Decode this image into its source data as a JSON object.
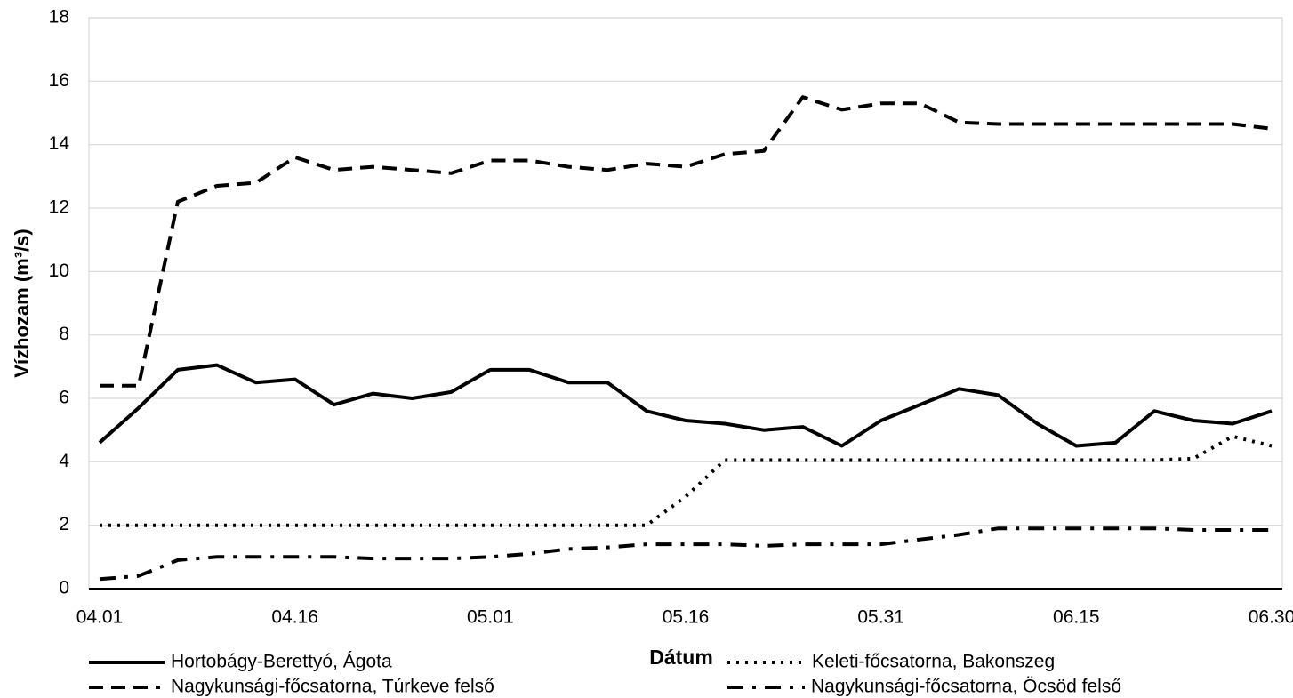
{
  "chart_data": {
    "type": "line",
    "x_label": "Dátum",
    "y_label": "Vízhozam (m³/s)",
    "categories": [
      "04.01",
      null,
      null,
      null,
      null,
      "04.16",
      null,
      null,
      null,
      null,
      "05.01",
      null,
      null,
      null,
      null,
      "05.16",
      null,
      null,
      null,
      null,
      "05.31",
      null,
      null,
      null,
      null,
      "06.15",
      null,
      null,
      null,
      null,
      "06.30"
    ],
    "ylim": [
      0,
      18
    ],
    "yticks": [
      0,
      2,
      4,
      6,
      8,
      10,
      12,
      14,
      16,
      18
    ],
    "grid": true,
    "series": [
      {
        "name": "Hortobágy-Berettyó, Ágota",
        "color": "#000000",
        "dash": "solid",
        "values": [
          4.6,
          5.7,
          6.9,
          7.05,
          6.5,
          6.6,
          5.8,
          6.15,
          6.0,
          6.2,
          6.9,
          6.9,
          6.5,
          6.5,
          5.6,
          5.3,
          5.2,
          5.0,
          5.1,
          4.5,
          5.3,
          5.8,
          6.3,
          6.1,
          5.2,
          4.5,
          4.6,
          5.6,
          5.3,
          5.2,
          5.6
        ]
      },
      {
        "name": "Keleti-főcsatorna, Bakonszeg",
        "color": "#000000",
        "dash": "dotted",
        "values": [
          2.0,
          2.0,
          2.0,
          2.0,
          2.0,
          2.0,
          2.0,
          2.0,
          2.0,
          2.0,
          2.0,
          2.0,
          2.0,
          2.0,
          2.0,
          2.9,
          4.05,
          4.05,
          4.05,
          4.05,
          4.05,
          4.05,
          4.05,
          4.05,
          4.05,
          4.05,
          4.05,
          4.05,
          4.1,
          4.8,
          4.5
        ]
      },
      {
        "name": "Nagykunsági-főcsatorna, Túrkeve felső",
        "color": "#000000",
        "dash": "dashed",
        "values": [
          6.4,
          6.4,
          12.2,
          12.7,
          12.8,
          13.6,
          13.2,
          13.3,
          13.2,
          13.1,
          13.5,
          13.5,
          13.3,
          13.2,
          13.4,
          13.3,
          13.7,
          13.8,
          15.5,
          15.1,
          15.3,
          15.3,
          14.7,
          14.65,
          14.65,
          14.65,
          14.65,
          14.65,
          14.65,
          14.65,
          14.5
        ]
      },
      {
        "name": "Nagykunsági-főcsatorna, Öcsöd felső",
        "color": "#000000",
        "dash": "dashdot",
        "values": [
          0.3,
          0.4,
          0.9,
          1.0,
          1.0,
          1.0,
          1.0,
          0.95,
          0.95,
          0.95,
          1.0,
          1.1,
          1.25,
          1.3,
          1.4,
          1.4,
          1.4,
          1.35,
          1.4,
          1.4,
          1.4,
          1.55,
          1.7,
          1.9,
          1.9,
          1.9,
          1.9,
          1.9,
          1.85,
          1.85,
          1.85
        ]
      }
    ]
  }
}
